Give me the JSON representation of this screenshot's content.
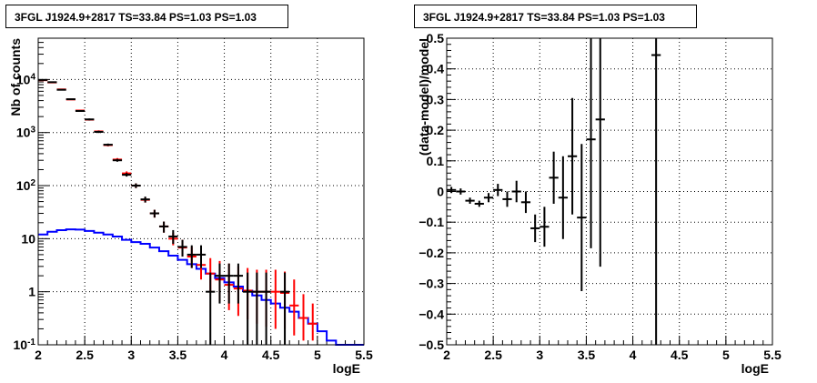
{
  "chart_data": [
    {
      "type": "histogram",
      "title": "3FGL J1924.9+2817 TS=33.84 PS=1.03 PS=1.03",
      "xlabel": "logE",
      "ylabel": "Nb of counts",
      "xlim": [
        2,
        5.5
      ],
      "ylim": [
        0.1,
        60000
      ],
      "yscale": "log",
      "grid": true,
      "x_ticks": [
        "2",
        "2.5",
        "3",
        "3.5",
        "4",
        "4.5",
        "5",
        "5.5"
      ],
      "y_ticks": [
        "10^{-1}",
        "1",
        "10",
        "10^{2}",
        "10^{3}",
        "10^{4}"
      ],
      "series": [
        {
          "color": "#0000ff",
          "style": "step",
          "x_edges": [
            2.0,
            2.1,
            2.2,
            2.3,
            2.4,
            2.5,
            2.6,
            2.7,
            2.8,
            2.9,
            3.0,
            3.1,
            3.2,
            3.3,
            3.4,
            3.5,
            3.6,
            3.7,
            3.8,
            3.9,
            4.0,
            4.1,
            4.2,
            4.3,
            4.4,
            4.5,
            4.6,
            4.7,
            4.8,
            4.9,
            5.0,
            5.1,
            5.2,
            5.3,
            5.4,
            5.5
          ],
          "values": [
            12,
            13.5,
            14.5,
            15,
            14.8,
            14,
            13,
            12,
            11,
            9.5,
            8.6,
            8,
            6.8,
            5.8,
            4.8,
            4,
            3.3,
            2.7,
            2.2,
            1.8,
            1.5,
            1.25,
            1.05,
            0.85,
            0.7,
            0.6,
            0.5,
            0.42,
            0.32,
            0.25,
            0.18,
            0.12,
            0.1,
            0.1,
            0.1
          ]
        },
        {
          "color": "#ff0000",
          "style": "errorbar",
          "x": [
            2.05,
            2.15,
            2.25,
            2.35,
            2.45,
            2.55,
            2.65,
            2.75,
            2.85,
            2.95,
            3.05,
            3.15,
            3.25,
            3.35,
            3.45,
            3.55,
            3.65,
            3.75,
            3.85,
            3.95,
            4.05,
            4.15,
            4.25,
            4.35,
            4.45,
            4.55,
            4.65,
            4.75,
            4.85,
            4.95
          ],
          "y": [
            9700,
            8800,
            6500,
            4200,
            2600,
            1750,
            1050,
            580,
            310,
            170,
            100,
            54,
            30,
            17,
            10,
            6.8,
            4.6,
            3.2,
            2.2,
            1.7,
            1.35,
            1.15,
            1.05,
            1.0,
            1.0,
            1.0,
            0.95,
            0.55,
            0.32,
            0.25
          ],
          "y_lo": [
            9500,
            8600,
            6350,
            4100,
            2520,
            1680,
            1000,
            550,
            290,
            155,
            90,
            48,
            25,
            13,
            7.5,
            4.6,
            2.8,
            1.7,
            1.0,
            0.65,
            0.45,
            0.35,
            0.3,
            0.25,
            0.22,
            0.2,
            0.2,
            0.15,
            0.12,
            0.12
          ],
          "y_hi": [
            9900,
            9000,
            6650,
            4300,
            2680,
            1820,
            1100,
            610,
            330,
            185,
            110,
            60,
            35,
            21,
            13,
            9.5,
            7,
            5.5,
            4.3,
            3.8,
            3.4,
            3.0,
            2.8,
            2.6,
            2.6,
            2.6,
            2.4,
            1.7,
            0.9,
            0.6
          ]
        },
        {
          "color": "#000000",
          "style": "errorbar",
          "x": [
            2.05,
            2.15,
            2.25,
            2.35,
            2.45,
            2.55,
            2.65,
            2.75,
            2.85,
            2.95,
            3.05,
            3.15,
            3.25,
            3.35,
            3.45,
            3.55,
            3.65,
            3.75,
            3.85,
            3.95,
            4.05,
            4.15,
            4.25,
            4.35,
            4.45,
            4.65
          ],
          "y": [
            9800,
            8900,
            6400,
            4250,
            2550,
            1770,
            1030,
            590,
            300,
            160,
            100,
            55,
            30,
            17,
            11,
            7,
            5,
            5,
            1,
            2,
            2,
            2,
            1,
            1,
            1,
            1
          ],
          "y_lo": [
            9600,
            8700,
            6250,
            4150,
            2470,
            1700,
            980,
            560,
            282,
            148,
            90,
            48,
            25,
            13,
            8,
            4.6,
            2.8,
            2.8,
            0.1,
            0.6,
            0.6,
            0.6,
            0.1,
            0.1,
            0.1,
            0.1
          ],
          "y_hi": [
            10000,
            9100,
            6550,
            4350,
            2630,
            1840,
            1080,
            620,
            318,
            173,
            110,
            62,
            35,
            21,
            14.5,
            9.5,
            7.5,
            7.5,
            2.3,
            3.4,
            3.4,
            3.4,
            2.3,
            2.3,
            2.3,
            2.3
          ]
        }
      ]
    },
    {
      "type": "scatter",
      "title": "3FGL J1924.9+2817 TS=33.84 PS=1.03 PS=1.03",
      "xlabel": "logE",
      "ylabel": "(data-model)/model",
      "xlim": [
        2,
        5.5
      ],
      "ylim": [
        -0.5,
        0.5
      ],
      "grid": true,
      "x_ticks": [
        "2",
        "2.5",
        "3",
        "3.5",
        "4",
        "4.5",
        "5",
        "5.5"
      ],
      "y_ticks": [
        "−0.5",
        "−0.4",
        "−0.3",
        "−0.2",
        "−0.1",
        "0",
        "0.1",
        "0.2",
        "0.3",
        "0.4",
        "0.5"
      ],
      "series": [
        {
          "color": "#000000",
          "style": "errorbar",
          "x": [
            2.05,
            2.15,
            2.25,
            2.35,
            2.45,
            2.55,
            2.65,
            2.75,
            2.85,
            2.95,
            3.05,
            3.15,
            3.25,
            3.35,
            3.45,
            3.55,
            3.65,
            4.25
          ],
          "y": [
            0.005,
            0.0,
            -0.03,
            -0.04,
            -0.02,
            0.005,
            -0.025,
            -0.0,
            -0.035,
            -0.12,
            -0.115,
            0.045,
            -0.02,
            0.115,
            -0.085,
            0.17,
            0.235,
            0.445
          ],
          "y_lo": [
            -0.005,
            -0.01,
            -0.04,
            -0.05,
            -0.035,
            -0.015,
            -0.05,
            -0.035,
            -0.07,
            -0.165,
            -0.18,
            -0.04,
            -0.155,
            -0.075,
            -0.325,
            -0.185,
            -0.245,
            -0.5
          ],
          "y_hi": [
            0.015,
            0.01,
            -0.02,
            -0.03,
            -0.005,
            0.025,
            0.0,
            0.035,
            0.0,
            -0.075,
            -0.05,
            0.13,
            0.115,
            0.305,
            0.155,
            0.5,
            0.5,
            0.5
          ]
        }
      ]
    }
  ]
}
